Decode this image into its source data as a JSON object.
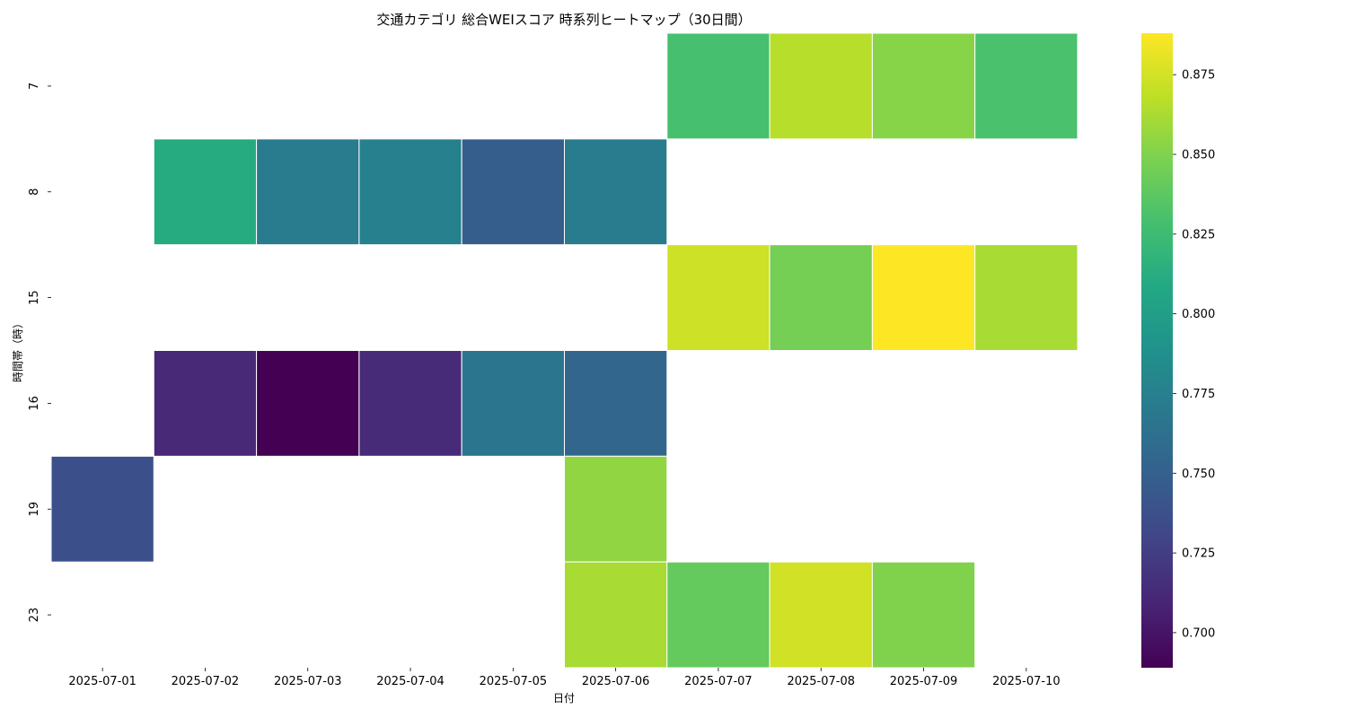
{
  "chart_data": {
    "type": "heatmap",
    "title": "交通カテゴリ 総合WEIスコア 時系列ヒートマップ（30日間）",
    "xlabel": "日付",
    "ylabel": "時間帯（時）",
    "x_categories": [
      "2025-07-01",
      "2025-07-02",
      "2025-07-03",
      "2025-07-04",
      "2025-07-05",
      "2025-07-06",
      "2025-07-07",
      "2025-07-08",
      "2025-07-09",
      "2025-07-10"
    ],
    "y_categories": [
      "7",
      "8",
      "15",
      "16",
      "19",
      "23"
    ],
    "values": [
      [
        null,
        null,
        null,
        null,
        null,
        null,
        0.829,
        0.866,
        0.852,
        0.83
      ],
      [
        null,
        0.811,
        0.772,
        0.775,
        0.748,
        0.772,
        null,
        null,
        null,
        null
      ],
      [
        null,
        null,
        null,
        null,
        null,
        null,
        0.873,
        0.846,
        0.888,
        0.862
      ],
      [
        null,
        0.712,
        0.689,
        0.713,
        0.766,
        0.754,
        null,
        null,
        null,
        null
      ],
      [
        0.738,
        null,
        null,
        null,
        null,
        0.855,
        null,
        null,
        null,
        null
      ],
      [
        null,
        null,
        null,
        null,
        null,
        0.862,
        0.84,
        0.874,
        0.85,
        null
      ]
    ],
    "colorscale": "viridis",
    "vmin": 0.689,
    "vmax": 0.888,
    "colorbar_ticks": [
      "0.700",
      "0.725",
      "0.750",
      "0.775",
      "0.800",
      "0.825",
      "0.850",
      "0.875"
    ],
    "grid": false,
    "legend": "colorbar-right"
  }
}
